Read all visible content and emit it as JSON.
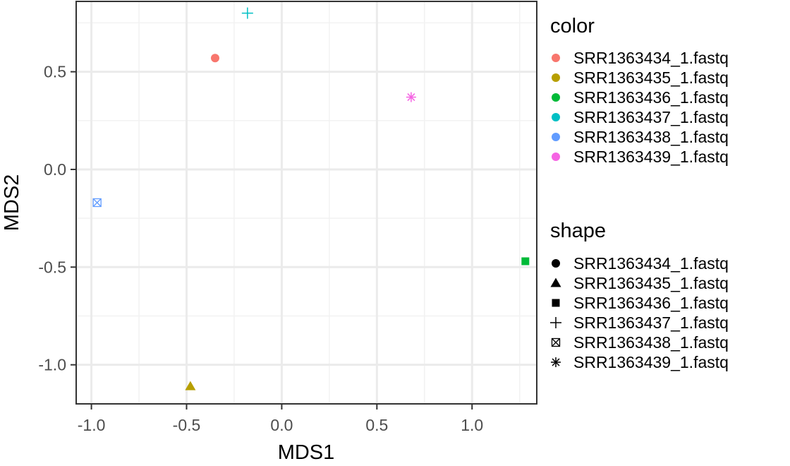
{
  "chart_data": {
    "type": "scatter",
    "xlabel": "MDS1",
    "ylabel": "MDS2",
    "xlim": [
      -1.08,
      1.34
    ],
    "ylim": [
      -1.2,
      0.86
    ],
    "x_ticks": [
      -1.0,
      -0.5,
      0.0,
      0.5,
      1.0
    ],
    "x_tick_labels": [
      "-1.0",
      "-0.5",
      "0.0",
      "0.5",
      "1.0"
    ],
    "y_ticks": [
      -1.0,
      -0.5,
      0.0,
      0.5
    ],
    "y_tick_labels": [
      "-1.0",
      "-0.5",
      "0.0",
      "0.5"
    ],
    "grid": true,
    "legend_placement": "right",
    "points": [
      {
        "label": "SRR1363434_1.fastq",
        "x": -0.35,
        "y": 0.57,
        "color": "#F8766D",
        "shape": "circle"
      },
      {
        "label": "SRR1363435_1.fastq",
        "x": -0.48,
        "y": -1.11,
        "color": "#B79F00",
        "shape": "triangle"
      },
      {
        "label": "SRR1363436_1.fastq",
        "x": 1.28,
        "y": -0.47,
        "color": "#00BA38",
        "shape": "square"
      },
      {
        "label": "SRR1363437_1.fastq",
        "x": -0.18,
        "y": 0.8,
        "color": "#00BFC4",
        "shape": "plus"
      },
      {
        "label": "SRR1363438_1.fastq",
        "x": -0.97,
        "y": -0.17,
        "color": "#619CFF",
        "shape": "boxcross"
      },
      {
        "label": "SRR1363439_1.fastq",
        "x": 0.68,
        "y": 0.37,
        "color": "#F564E3",
        "shape": "asterisk"
      }
    ]
  },
  "legend": {
    "color_title": "color",
    "shape_title": "shape",
    "items": [
      {
        "label": "SRR1363434_1.fastq",
        "color": "#F8766D",
        "shape": "circle"
      },
      {
        "label": "SRR1363435_1.fastq",
        "color": "#B79F00",
        "shape": "triangle"
      },
      {
        "label": "SRR1363436_1.fastq",
        "color": "#00BA38",
        "shape": "square"
      },
      {
        "label": "SRR1363437_1.fastq",
        "color": "#00BFC4",
        "shape": "plus"
      },
      {
        "label": "SRR1363438_1.fastq",
        "color": "#619CFF",
        "shape": "boxcross"
      },
      {
        "label": "SRR1363439_1.fastq",
        "color": "#F564E3",
        "shape": "asterisk"
      }
    ]
  }
}
